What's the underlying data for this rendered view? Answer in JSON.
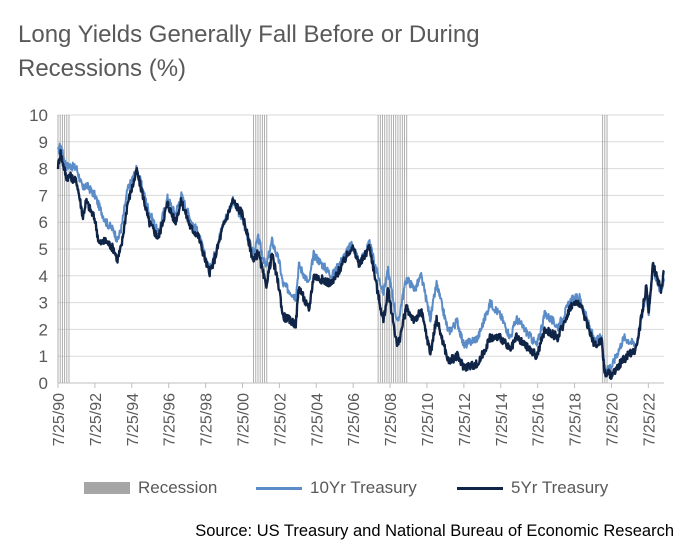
{
  "title": "Long Yields Generally Fall Before or During Recessions (%)",
  "source": "Source: US Treasury and National Bureau of Economic Research",
  "colors": {
    "recession": "#a6a6a6",
    "ten_yr": "#5b8cc8",
    "five_yr": "#0f2446",
    "axis_text": "#595959",
    "grid": "#d9d9d9"
  },
  "legend": [
    {
      "label": "Recession",
      "swatch": "bar"
    },
    {
      "label": "10Yr Treasury",
      "swatch": "line"
    },
    {
      "label": "5Yr Treasury",
      "swatch": "line"
    }
  ],
  "chart_data": {
    "type": "line",
    "x_axis": {
      "type": "date",
      "range": [
        "1990-07-25",
        "2023-05-31"
      ],
      "tick_labels": [
        "7/25/90",
        "7/25/92",
        "7/25/94",
        "7/25/96",
        "7/25/98",
        "7/25/00",
        "7/25/02",
        "7/25/04",
        "7/25/06",
        "7/25/08",
        "7/25/10",
        "7/25/12",
        "7/25/14",
        "7/25/16",
        "7/25/18",
        "7/25/20",
        "7/25/22"
      ],
      "tick_dates": [
        "1990-07-25",
        "1992-07-25",
        "1994-07-25",
        "1996-07-25",
        "1998-07-25",
        "2000-07-25",
        "2002-07-25",
        "2004-07-25",
        "2006-07-25",
        "2008-07-25",
        "2010-07-25",
        "2012-07-25",
        "2014-07-25",
        "2016-07-25",
        "2018-07-25",
        "2020-07-25",
        "2022-07-25"
      ]
    },
    "y_axis": {
      "min": 0,
      "max": 10,
      "step": 1,
      "tick_labels": [
        "0",
        "1",
        "2",
        "3",
        "4",
        "5",
        "6",
        "7",
        "8",
        "9",
        "10"
      ]
    },
    "grid": {
      "horizontal": true,
      "vertical": false
    },
    "legend_position": "bottom",
    "recessions": [
      {
        "start": "1990-07-25",
        "end": "1991-03-31"
      },
      {
        "start": "2001-03-01",
        "end": "2001-11-30"
      },
      {
        "start": "2007-12-01",
        "end": "2009-06-30"
      },
      {
        "start": "2020-02-01",
        "end": "2020-04-30"
      }
    ],
    "series": [
      {
        "name": "10Yr Treasury",
        "points": [
          [
            "1990-07-25",
            8.6
          ],
          [
            "1990-09-15",
            8.9
          ],
          [
            "1990-11-01",
            8.5
          ],
          [
            "1991-01-01",
            8.1
          ],
          [
            "1991-04-01",
            8.1
          ],
          [
            "1991-08-01",
            8.0
          ],
          [
            "1991-12-01",
            7.2
          ],
          [
            "1992-02-01",
            7.4
          ],
          [
            "1992-07-25",
            7.0
          ],
          [
            "1992-10-15",
            6.6
          ],
          [
            "1993-03-01",
            6.0
          ],
          [
            "1993-08-01",
            5.7
          ],
          [
            "1993-10-15",
            5.3
          ],
          [
            "1994-01-01",
            5.8
          ],
          [
            "1994-05-01",
            7.2
          ],
          [
            "1994-11-01",
            8.0
          ],
          [
            "1995-03-01",
            7.2
          ],
          [
            "1995-07-01",
            6.4
          ],
          [
            "1995-12-31",
            5.6
          ],
          [
            "1996-07-01",
            6.9
          ],
          [
            "1996-12-01",
            6.3
          ],
          [
            "1997-04-01",
            7.0
          ],
          [
            "1997-10-01",
            6.1
          ],
          [
            "1998-03-01",
            5.6
          ],
          [
            "1998-10-05",
            4.2
          ],
          [
            "1999-01-01",
            4.7
          ],
          [
            "1999-07-01",
            5.9
          ],
          [
            "2000-01-15",
            6.8
          ],
          [
            "2000-07-25",
            6.1
          ],
          [
            "2000-12-31",
            5.1
          ],
          [
            "2001-03-01",
            4.8
          ],
          [
            "2001-06-01",
            5.4
          ],
          [
            "2001-11-01",
            4.3
          ],
          [
            "2002-03-01",
            5.3
          ],
          [
            "2002-07-25",
            4.5
          ],
          [
            "2002-10-01",
            3.7
          ],
          [
            "2003-06-15",
            3.2
          ],
          [
            "2003-08-15",
            4.4
          ],
          [
            "2004-03-01",
            3.7
          ],
          [
            "2004-06-01",
            4.8
          ],
          [
            "2005-06-01",
            4.0
          ],
          [
            "2006-06-30",
            5.2
          ],
          [
            "2006-12-01",
            4.5
          ],
          [
            "2007-06-15",
            5.2
          ],
          [
            "2007-12-01",
            4.0
          ],
          [
            "2008-03-15",
            3.4
          ],
          [
            "2008-06-15",
            4.2
          ],
          [
            "2008-12-20",
            2.2
          ],
          [
            "2009-06-10",
            3.9
          ],
          [
            "2009-12-01",
            3.5
          ],
          [
            "2010-04-01",
            4.0
          ],
          [
            "2010-10-01",
            2.4
          ],
          [
            "2011-02-01",
            3.7
          ],
          [
            "2011-09-22",
            1.9
          ],
          [
            "2012-03-15",
            2.3
          ],
          [
            "2012-07-25",
            1.4
          ],
          [
            "2013-05-01",
            1.7
          ],
          [
            "2013-12-31",
            3.0
          ],
          [
            "2014-07-25",
            2.5
          ],
          [
            "2015-01-31",
            1.7
          ],
          [
            "2015-06-01",
            2.4
          ],
          [
            "2016-07-08",
            1.4
          ],
          [
            "2016-12-15",
            2.6
          ],
          [
            "2017-09-01",
            2.1
          ],
          [
            "2018-05-15",
            3.1
          ],
          [
            "2018-11-01",
            3.2
          ],
          [
            "2019-09-01",
            1.5
          ],
          [
            "2020-01-15",
            1.8
          ],
          [
            "2020-03-09",
            0.6
          ],
          [
            "2020-07-25",
            0.6
          ],
          [
            "2021-03-31",
            1.7
          ],
          [
            "2021-12-01",
            1.4
          ],
          [
            "2022-06-15",
            3.4
          ],
          [
            "2022-08-01",
            2.6
          ],
          [
            "2022-10-21",
            4.3
          ],
          [
            "2023-04-01",
            3.4
          ],
          [
            "2023-05-31",
            3.8
          ]
        ]
      },
      {
        "name": "5Yr Treasury",
        "points": [
          [
            "1990-07-25",
            8.1
          ],
          [
            "1990-09-15",
            8.6
          ],
          [
            "1990-11-01",
            8.2
          ],
          [
            "1991-01-01",
            7.7
          ],
          [
            "1991-04-01",
            7.7
          ],
          [
            "1991-08-01",
            7.5
          ],
          [
            "1991-12-01",
            6.2
          ],
          [
            "1992-02-01",
            6.8
          ],
          [
            "1992-07-25",
            6.1
          ],
          [
            "1992-10-15",
            5.2
          ],
          [
            "1993-03-01",
            5.3
          ],
          [
            "1993-08-01",
            5.0
          ],
          [
            "1993-10-15",
            4.6
          ],
          [
            "1994-01-01",
            5.1
          ],
          [
            "1994-05-01",
            6.7
          ],
          [
            "1994-11-01",
            7.9
          ],
          [
            "1995-03-01",
            7.0
          ],
          [
            "1995-07-01",
            6.0
          ],
          [
            "1995-12-31",
            5.4
          ],
          [
            "1996-07-01",
            6.7
          ],
          [
            "1996-12-01",
            6.0
          ],
          [
            "1997-04-01",
            6.8
          ],
          [
            "1997-10-01",
            5.8
          ],
          [
            "1998-03-01",
            5.5
          ],
          [
            "1998-10-05",
            4.1
          ],
          [
            "1999-01-01",
            4.5
          ],
          [
            "1999-07-01",
            5.8
          ],
          [
            "2000-01-15",
            6.8
          ],
          [
            "2000-07-25",
            6.3
          ],
          [
            "2000-12-31",
            5.0
          ],
          [
            "2001-03-01",
            4.5
          ],
          [
            "2001-06-01",
            4.9
          ],
          [
            "2001-11-01",
            3.6
          ],
          [
            "2002-03-01",
            4.8
          ],
          [
            "2002-07-25",
            3.5
          ],
          [
            "2002-10-01",
            2.5
          ],
          [
            "2003-06-15",
            2.2
          ],
          [
            "2003-08-15",
            3.6
          ],
          [
            "2004-03-01",
            2.7
          ],
          [
            "2004-06-01",
            4.0
          ],
          [
            "2005-06-01",
            3.7
          ],
          [
            "2006-06-30",
            5.1
          ],
          [
            "2006-12-01",
            4.4
          ],
          [
            "2007-06-15",
            5.1
          ],
          [
            "2007-12-01",
            3.3
          ],
          [
            "2008-03-15",
            2.3
          ],
          [
            "2008-06-15",
            3.5
          ],
          [
            "2008-12-20",
            1.3
          ],
          [
            "2009-06-10",
            2.8
          ],
          [
            "2009-12-01",
            2.3
          ],
          [
            "2010-04-01",
            2.7
          ],
          [
            "2010-10-01",
            1.1
          ],
          [
            "2011-02-01",
            2.4
          ],
          [
            "2011-09-22",
            0.8
          ],
          [
            "2012-03-15",
            1.0
          ],
          [
            "2012-07-25",
            0.6
          ],
          [
            "2013-05-01",
            0.7
          ],
          [
            "2013-12-31",
            1.7
          ],
          [
            "2014-07-25",
            1.7
          ],
          [
            "2015-01-31",
            1.2
          ],
          [
            "2015-06-01",
            1.7
          ],
          [
            "2016-07-08",
            1.0
          ],
          [
            "2016-12-15",
            2.0
          ],
          [
            "2017-09-01",
            1.7
          ],
          [
            "2018-05-15",
            2.9
          ],
          [
            "2018-11-01",
            3.0
          ],
          [
            "2019-09-01",
            1.4
          ],
          [
            "2020-01-15",
            1.6
          ],
          [
            "2020-03-09",
            0.4
          ],
          [
            "2020-07-25",
            0.3
          ],
          [
            "2021-03-31",
            0.9
          ],
          [
            "2021-12-01",
            1.3
          ],
          [
            "2022-06-15",
            3.6
          ],
          [
            "2022-08-01",
            2.7
          ],
          [
            "2022-10-21",
            4.4
          ],
          [
            "2023-04-01",
            3.5
          ],
          [
            "2023-05-31",
            4.2
          ]
        ]
      }
    ]
  }
}
